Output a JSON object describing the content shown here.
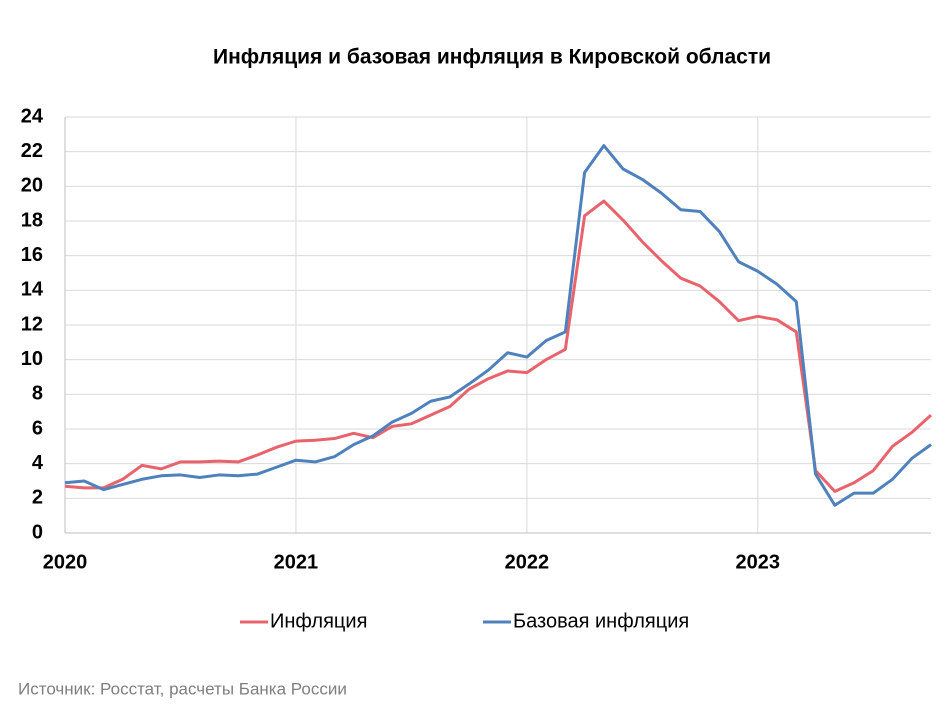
{
  "chart_data": {
    "type": "line",
    "title": "Инфляция и базовая инфляция в Кировской области",
    "source": "Источник: Росстат, расчеты Банка России",
    "categories": [
      "2020",
      null,
      null,
      null,
      null,
      null,
      null,
      null,
      null,
      null,
      null,
      null,
      "2021",
      null,
      null,
      null,
      null,
      null,
      null,
      null,
      null,
      null,
      null,
      null,
      "2022",
      null,
      null,
      null,
      null,
      null,
      null,
      null,
      null,
      null,
      null,
      null,
      "2023",
      null,
      null,
      null,
      null,
      null,
      null,
      null,
      null,
      null
    ],
    "series": [
      {
        "name": "Инфляция",
        "color": "#e8636b",
        "values": [
          2.7,
          2.6,
          2.6,
          3.1,
          3.9,
          3.7,
          4.1,
          4.1,
          4.15,
          4.1,
          4.5,
          4.95,
          5.3,
          5.35,
          5.45,
          5.75,
          5.5,
          6.15,
          6.3,
          6.8,
          7.3,
          8.3,
          8.9,
          9.35,
          9.25,
          10.0,
          10.6,
          18.3,
          19.15,
          18.05,
          16.8,
          15.7,
          14.7,
          14.25,
          13.35,
          12.25,
          12.5,
          12.3,
          11.6,
          3.6,
          2.4,
          2.9,
          3.6,
          5.0,
          5.8,
          6.8
        ]
      },
      {
        "name": "Базовая инфляция",
        "color": "#4f81bd",
        "values": [
          2.9,
          3.0,
          2.5,
          2.8,
          3.1,
          3.3,
          3.35,
          3.2,
          3.35,
          3.3,
          3.4,
          3.8,
          4.2,
          4.1,
          4.4,
          5.1,
          5.6,
          6.4,
          6.9,
          7.6,
          7.85,
          8.6,
          9.4,
          10.4,
          10.15,
          11.1,
          11.6,
          20.8,
          22.35,
          21.0,
          20.4,
          19.6,
          18.65,
          18.55,
          17.4,
          15.65,
          15.1,
          14.35,
          13.35,
          3.4,
          1.6,
          2.3,
          2.3,
          3.1,
          4.3,
          5.1
        ]
      }
    ],
    "ylim": [
      0,
      24
    ],
    "yticks": [
      0,
      2,
      4,
      6,
      8,
      10,
      12,
      14,
      16,
      18,
      20,
      22,
      24
    ],
    "grid": true,
    "legend": "bottom"
  }
}
